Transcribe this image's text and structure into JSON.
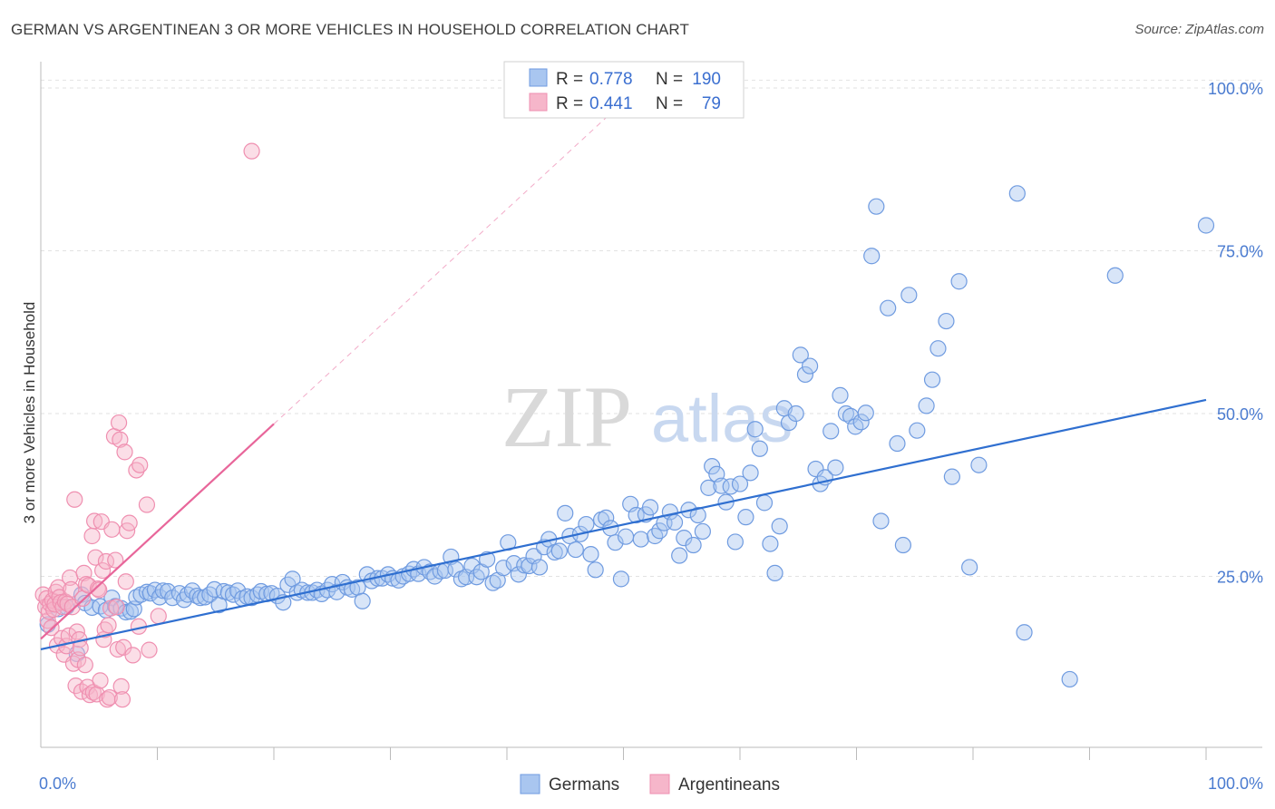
{
  "header": {
    "title": "GERMAN VS ARGENTINEAN 3 OR MORE VEHICLES IN HOUSEHOLD CORRELATION CHART",
    "source": "Source: ZipAtlas.com"
  },
  "watermark": {
    "part1": "ZIP",
    "part2": "atlas"
  },
  "legend": {
    "rows": [
      {
        "r_label": "R =",
        "r_value": "0.778",
        "n_label": "N =",
        "n_value": "190",
        "color": "#6f9be0"
      },
      {
        "r_label": "R =",
        "r_value": "0.441",
        "n_label": "N =",
        "n_value": "79",
        "color": "#ef8fb0"
      }
    ],
    "bottom": [
      "Germans",
      "Argentineans"
    ]
  },
  "colors": {
    "blue_fill": "#a9c6f0",
    "blue_stroke": "#6f9be0",
    "blue_line": "#2f6fd0",
    "pink_fill": "#f6b6ca",
    "pink_stroke": "#ef8fb0",
    "pink_line": "#e8669a",
    "grid": "#e2e2e2",
    "tick_text": "#4a7bd0"
  },
  "chart_data": {
    "type": "scatter",
    "title": "GERMAN VS ARGENTINEAN 3 OR MORE VEHICLES IN HOUSEHOLD CORRELATION CHART",
    "xlabel": "",
    "ylabel": "3 or more Vehicles in Household",
    "xlim": [
      0,
      100
    ],
    "ylim": [
      0,
      100
    ],
    "x_tick_labels": [
      "0.0%",
      "100.0%"
    ],
    "y_ticks": [
      25,
      50,
      75,
      100
    ],
    "y_tick_labels": [
      "25.0%",
      "50.0%",
      "75.0%",
      "100.0%"
    ],
    "grid": true,
    "legend_position": "top-center",
    "series": [
      {
        "name": "Germans",
        "r": 0.778,
        "n": 190,
        "trend": {
          "x": [
            0,
            100
          ],
          "y": [
            13.8,
            52.1
          ]
        },
        "points": [
          [
            0.6,
            17.6
          ],
          [
            1.5,
            20.0
          ],
          [
            2.2,
            20.3
          ],
          [
            3.1,
            13.1
          ],
          [
            3.5,
            22.2
          ],
          [
            3.8,
            20.9
          ],
          [
            4.4,
            20.2
          ],
          [
            5.1,
            20.4
          ],
          [
            5.6,
            19.8
          ],
          [
            6.1,
            21.7
          ],
          [
            6.4,
            20.4
          ],
          [
            6.9,
            20.1
          ],
          [
            7.3,
            19.5
          ],
          [
            7.7,
            19.6
          ],
          [
            8.0,
            20.0
          ],
          [
            8.2,
            21.8
          ],
          [
            8.6,
            22.2
          ],
          [
            9.1,
            22.6
          ],
          [
            9.4,
            22.4
          ],
          [
            9.8,
            22.9
          ],
          [
            10.2,
            21.8
          ],
          [
            10.5,
            22.8
          ],
          [
            10.9,
            22.7
          ],
          [
            11.3,
            21.7
          ],
          [
            11.9,
            22.4
          ],
          [
            12.3,
            21.4
          ],
          [
            12.6,
            22.2
          ],
          [
            13.0,
            22.8
          ],
          [
            13.4,
            22.0
          ],
          [
            13.7,
            21.7
          ],
          [
            14.1,
            21.8
          ],
          [
            14.5,
            22.2
          ],
          [
            14.9,
            23.0
          ],
          [
            15.3,
            20.6
          ],
          [
            15.7,
            22.7
          ],
          [
            16.1,
            22.5
          ],
          [
            16.5,
            22.2
          ],
          [
            16.9,
            22.8
          ],
          [
            17.3,
            21.6
          ],
          [
            17.7,
            21.9
          ],
          [
            18.1,
            21.7
          ],
          [
            18.6,
            22.2
          ],
          [
            18.9,
            22.7
          ],
          [
            19.4,
            22.3
          ],
          [
            19.8,
            22.4
          ],
          [
            20.3,
            22.0
          ],
          [
            20.8,
            21.0
          ],
          [
            21.2,
            23.7
          ],
          [
            21.6,
            24.6
          ],
          [
            22.0,
            22.5
          ],
          [
            22.4,
            22.9
          ],
          [
            22.9,
            22.5
          ],
          [
            23.3,
            22.5
          ],
          [
            23.7,
            22.9
          ],
          [
            24.1,
            22.3
          ],
          [
            24.6,
            22.9
          ],
          [
            25.0,
            23.8
          ],
          [
            25.4,
            22.6
          ],
          [
            25.9,
            24.1
          ],
          [
            26.3,
            23.3
          ],
          [
            26.7,
            23.0
          ],
          [
            27.2,
            23.3
          ],
          [
            27.6,
            21.2
          ],
          [
            28.0,
            25.3
          ],
          [
            28.4,
            24.3
          ],
          [
            28.9,
            24.7
          ],
          [
            29.3,
            24.7
          ],
          [
            29.8,
            25.3
          ],
          [
            30.2,
            24.7
          ],
          [
            30.7,
            24.4
          ],
          [
            31.1,
            25.0
          ],
          [
            31.6,
            25.4
          ],
          [
            32.0,
            26.1
          ],
          [
            32.4,
            25.4
          ],
          [
            32.9,
            26.4
          ],
          [
            33.4,
            25.7
          ],
          [
            33.8,
            25.0
          ],
          [
            34.3,
            25.8
          ],
          [
            34.7,
            25.9
          ],
          [
            35.2,
            28.0
          ],
          [
            35.6,
            26.1
          ],
          [
            36.1,
            24.6
          ],
          [
            36.5,
            24.9
          ],
          [
            37.0,
            26.6
          ],
          [
            37.4,
            24.9
          ],
          [
            37.8,
            25.7
          ],
          [
            38.3,
            27.6
          ],
          [
            38.8,
            24.0
          ],
          [
            39.2,
            24.4
          ],
          [
            39.7,
            26.3
          ],
          [
            40.1,
            30.2
          ],
          [
            40.6,
            27.0
          ],
          [
            41.0,
            25.3
          ],
          [
            41.5,
            26.7
          ],
          [
            41.9,
            26.6
          ],
          [
            42.3,
            28.1
          ],
          [
            42.8,
            26.4
          ],
          [
            43.2,
            29.5
          ],
          [
            43.6,
            30.7
          ],
          [
            44.1,
            28.7
          ],
          [
            44.5,
            28.9
          ],
          [
            45.0,
            34.7
          ],
          [
            45.4,
            31.2
          ],
          [
            45.9,
            29.1
          ],
          [
            46.3,
            31.5
          ],
          [
            46.8,
            33.0
          ],
          [
            47.2,
            28.4
          ],
          [
            47.6,
            26.0
          ],
          [
            48.1,
            33.7
          ],
          [
            48.5,
            34.0
          ],
          [
            48.9,
            32.4
          ],
          [
            49.3,
            30.2
          ],
          [
            49.8,
            24.6
          ],
          [
            50.2,
            31.1
          ],
          [
            50.6,
            36.1
          ],
          [
            51.1,
            34.4
          ],
          [
            51.5,
            30.7
          ],
          [
            51.9,
            34.5
          ],
          [
            52.3,
            35.6
          ],
          [
            52.7,
            31.2
          ],
          [
            53.1,
            32.0
          ],
          [
            53.5,
            33.2
          ],
          [
            54.0,
            34.9
          ],
          [
            54.4,
            33.3
          ],
          [
            54.8,
            28.2
          ],
          [
            55.2,
            30.9
          ],
          [
            55.6,
            35.2
          ],
          [
            56.0,
            29.8
          ],
          [
            56.4,
            34.4
          ],
          [
            56.8,
            31.9
          ],
          [
            57.3,
            38.6
          ],
          [
            57.6,
            41.9
          ],
          [
            58.0,
            40.7
          ],
          [
            58.4,
            38.9
          ],
          [
            58.8,
            36.4
          ],
          [
            59.2,
            38.8
          ],
          [
            59.6,
            30.3
          ],
          [
            60.0,
            39.2
          ],
          [
            60.5,
            34.1
          ],
          [
            60.9,
            40.9
          ],
          [
            61.3,
            47.6
          ],
          [
            61.7,
            44.6
          ],
          [
            62.1,
            36.3
          ],
          [
            62.6,
            30.0
          ],
          [
            63.0,
            25.5
          ],
          [
            63.4,
            32.7
          ],
          [
            63.8,
            50.8
          ],
          [
            64.2,
            48.6
          ],
          [
            64.8,
            50.0
          ],
          [
            65.2,
            59.0
          ],
          [
            65.6,
            56.0
          ],
          [
            66.0,
            57.3
          ],
          [
            66.5,
            41.5
          ],
          [
            66.9,
            39.2
          ],
          [
            67.3,
            40.2
          ],
          [
            67.8,
            47.3
          ],
          [
            68.2,
            41.7
          ],
          [
            68.6,
            52.8
          ],
          [
            69.1,
            50.0
          ],
          [
            69.5,
            49.6
          ],
          [
            69.9,
            48.0
          ],
          [
            70.4,
            48.7
          ],
          [
            70.8,
            50.1
          ],
          [
            71.3,
            74.2
          ],
          [
            71.7,
            81.8
          ],
          [
            72.1,
            33.5
          ],
          [
            72.7,
            66.2
          ],
          [
            73.5,
            45.4
          ],
          [
            74.0,
            29.8
          ],
          [
            74.5,
            68.2
          ],
          [
            75.2,
            47.4
          ],
          [
            76.0,
            51.2
          ],
          [
            76.5,
            55.2
          ],
          [
            77.0,
            60.0
          ],
          [
            77.7,
            64.2
          ],
          [
            78.2,
            40.3
          ],
          [
            78.8,
            70.3
          ],
          [
            79.7,
            26.4
          ],
          [
            80.5,
            42.1
          ],
          [
            83.8,
            83.8
          ],
          [
            84.4,
            16.4
          ],
          [
            88.3,
            9.2
          ],
          [
            92.2,
            71.2
          ],
          [
            100.0,
            78.9
          ]
        ]
      },
      {
        "name": "Argentineans",
        "r": 0.441,
        "n": 79,
        "trend": {
          "x": [
            0,
            20
          ],
          "y": [
            15.4,
            48.4
          ]
        },
        "points": [
          [
            0.2,
            22.2
          ],
          [
            0.4,
            20.3
          ],
          [
            0.5,
            21.6
          ],
          [
            0.6,
            18.2
          ],
          [
            0.7,
            19.6
          ],
          [
            0.8,
            20.8
          ],
          [
            0.9,
            17.1
          ],
          [
            1.0,
            21.3
          ],
          [
            1.1,
            19.9
          ],
          [
            1.2,
            20.7
          ],
          [
            1.3,
            22.6
          ],
          [
            1.4,
            14.4
          ],
          [
            1.5,
            23.3
          ],
          [
            1.6,
            21.8
          ],
          [
            1.7,
            21.0
          ],
          [
            1.8,
            15.5
          ],
          [
            1.9,
            20.3
          ],
          [
            2.0,
            13.0
          ],
          [
            2.1,
            21.1
          ],
          [
            2.2,
            14.3
          ],
          [
            2.3,
            20.8
          ],
          [
            2.4,
            15.9
          ],
          [
            2.5,
            24.8
          ],
          [
            2.6,
            23.0
          ],
          [
            2.7,
            20.3
          ],
          [
            2.8,
            11.6
          ],
          [
            2.9,
            36.8
          ],
          [
            3.0,
            8.2
          ],
          [
            3.1,
            16.5
          ],
          [
            3.2,
            12.2
          ],
          [
            3.3,
            15.3
          ],
          [
            3.4,
            14.0
          ],
          [
            3.5,
            7.3
          ],
          [
            3.6,
            21.6
          ],
          [
            3.7,
            25.5
          ],
          [
            3.8,
            11.4
          ],
          [
            3.9,
            23.8
          ],
          [
            4.0,
            8.0
          ],
          [
            4.1,
            23.6
          ],
          [
            4.2,
            6.8
          ],
          [
            4.4,
            31.2
          ],
          [
            4.5,
            7.2
          ],
          [
            4.6,
            33.5
          ],
          [
            4.7,
            27.9
          ],
          [
            4.8,
            6.9
          ],
          [
            4.9,
            23.1
          ],
          [
            5.0,
            22.9
          ],
          [
            5.1,
            9.0
          ],
          [
            5.2,
            33.4
          ],
          [
            5.3,
            25.9
          ],
          [
            5.4,
            15.3
          ],
          [
            5.5,
            16.8
          ],
          [
            5.6,
            27.3
          ],
          [
            5.7,
            6.1
          ],
          [
            5.8,
            17.5
          ],
          [
            5.9,
            6.4
          ],
          [
            6.0,
            20.1
          ],
          [
            6.1,
            32.2
          ],
          [
            6.3,
            46.5
          ],
          [
            6.4,
            27.5
          ],
          [
            6.5,
            20.3
          ],
          [
            6.6,
            13.8
          ],
          [
            6.7,
            48.6
          ],
          [
            6.8,
            46.0
          ],
          [
            6.9,
            8.1
          ],
          [
            7.0,
            6.1
          ],
          [
            7.1,
            14.1
          ],
          [
            7.2,
            44.1
          ],
          [
            7.3,
            24.2
          ],
          [
            7.4,
            32.0
          ],
          [
            7.6,
            33.2
          ],
          [
            7.9,
            12.9
          ],
          [
            8.2,
            41.3
          ],
          [
            8.4,
            17.3
          ],
          [
            8.5,
            42.1
          ],
          [
            9.1,
            36.0
          ],
          [
            9.3,
            13.7
          ],
          [
            10.1,
            18.9
          ],
          [
            18.1,
            90.3
          ]
        ]
      }
    ]
  }
}
